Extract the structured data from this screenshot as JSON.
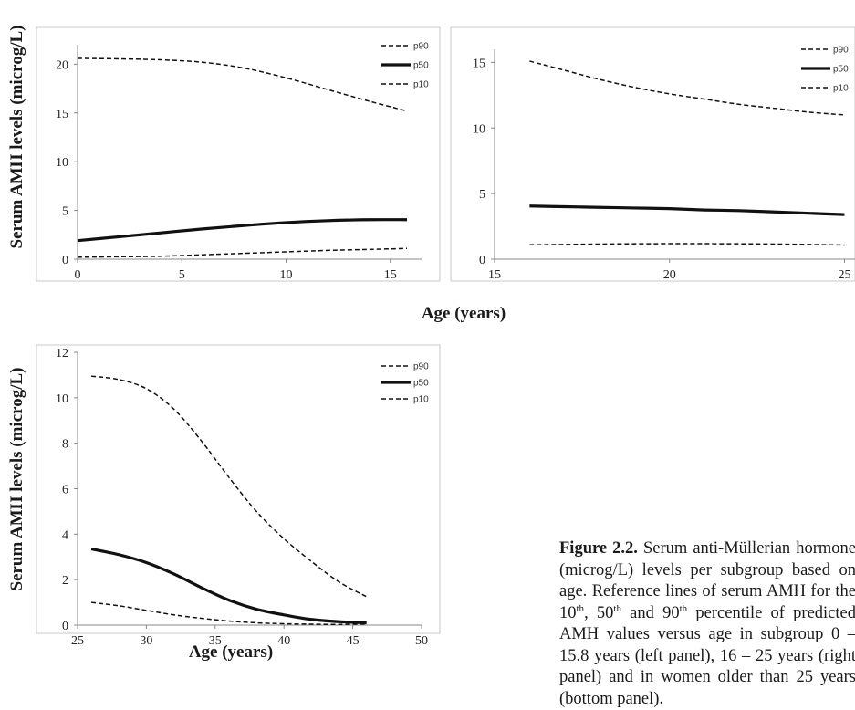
{
  "chart_data": [
    {
      "type": "line",
      "panel": "left",
      "ylabel": "Serum AMH levels (microg/L)",
      "xlim": [
        0,
        16.5
      ],
      "ylim": [
        0,
        22
      ],
      "xticks": [
        "0",
        "5",
        "10",
        "15"
      ],
      "yticks": [
        "0",
        "5",
        "10",
        "15",
        "20"
      ],
      "legend_position": "top-right",
      "series": [
        {
          "name": "p90",
          "style": "dashed",
          "x": [
            0,
            2,
            4,
            6,
            8,
            10,
            12,
            14,
            15.8
          ],
          "y": [
            20.6,
            20.55,
            20.45,
            20.2,
            19.6,
            18.6,
            17.4,
            16.2,
            15.2
          ]
        },
        {
          "name": "p50",
          "style": "solid",
          "x": [
            0,
            2,
            4,
            6,
            8,
            10,
            12,
            14,
            15.8
          ],
          "y": [
            1.9,
            2.3,
            2.7,
            3.1,
            3.45,
            3.75,
            3.95,
            4.05,
            4.05
          ]
        },
        {
          "name": "p10",
          "style": "dashed",
          "x": [
            0,
            2,
            4,
            6,
            8,
            10,
            12,
            14,
            15.8
          ],
          "y": [
            0.2,
            0.25,
            0.3,
            0.45,
            0.6,
            0.75,
            0.9,
            1.0,
            1.1
          ]
        }
      ]
    },
    {
      "type": "line",
      "panel": "right",
      "xlim": [
        15,
        25.3
      ],
      "ylim": [
        0,
        16
      ],
      "xticks": [
        "15",
        "20",
        "25"
      ],
      "yticks": [
        "0",
        "5",
        "10",
        "15"
      ],
      "legend_position": "top-right",
      "series": [
        {
          "name": "p90",
          "style": "dashed",
          "x": [
            16,
            17,
            18,
            19,
            20,
            21,
            22,
            23,
            24,
            25
          ],
          "y": [
            15.1,
            14.4,
            13.7,
            13.1,
            12.6,
            12.2,
            11.8,
            11.5,
            11.2,
            11.0
          ]
        },
        {
          "name": "p50",
          "style": "solid",
          "x": [
            16,
            17,
            18,
            19,
            20,
            21,
            22,
            23,
            24,
            25
          ],
          "y": [
            4.05,
            4.0,
            3.95,
            3.9,
            3.85,
            3.75,
            3.7,
            3.6,
            3.5,
            3.4
          ]
        },
        {
          "name": "p10",
          "style": "dashed",
          "x": [
            16,
            17,
            18,
            19,
            20,
            21,
            22,
            23,
            24,
            25
          ],
          "y": [
            1.1,
            1.12,
            1.15,
            1.17,
            1.18,
            1.18,
            1.17,
            1.15,
            1.12,
            1.08
          ]
        }
      ]
    },
    {
      "type": "line",
      "panel": "bottom",
      "xlabel": "Age (years)",
      "ylabel": "Serum AMH levels (microg/L)",
      "xlim": [
        25,
        50
      ],
      "ylim": [
        0,
        12
      ],
      "xticks": [
        "25",
        "30",
        "35",
        "40",
        "45",
        "50"
      ],
      "yticks": [
        "0",
        "2",
        "4",
        "6",
        "8",
        "10",
        "12"
      ],
      "legend_position": "top-right",
      "series": [
        {
          "name": "p90",
          "style": "dashed",
          "x": [
            26,
            28,
            30,
            32,
            34,
            36,
            38,
            40,
            42,
            44,
            46
          ],
          "y": [
            10.95,
            10.8,
            10.4,
            9.5,
            8.1,
            6.5,
            5.0,
            3.8,
            2.8,
            1.9,
            1.25
          ]
        },
        {
          "name": "p50",
          "style": "solid",
          "x": [
            26,
            28,
            30,
            32,
            34,
            36,
            38,
            40,
            42,
            44,
            46
          ],
          "y": [
            3.35,
            3.1,
            2.75,
            2.25,
            1.65,
            1.1,
            0.7,
            0.45,
            0.25,
            0.15,
            0.1
          ]
        },
        {
          "name": "p10",
          "style": "dashed",
          "x": [
            26,
            28,
            30,
            32,
            34,
            36,
            38,
            40,
            42,
            44,
            46
          ],
          "y": [
            1.0,
            0.85,
            0.65,
            0.45,
            0.3,
            0.18,
            0.1,
            0.06,
            0.04,
            0.03,
            0.05
          ]
        }
      ]
    }
  ],
  "shared_xlabel": "Age (years)",
  "caption": {
    "label": "Figure 2.2.",
    "text_before_sup1": " Serum anti-Müllerian hormone (microg/L) levels per subgroup based on age. Reference lines of serum AMH for the 10",
    "sup1": "th",
    "text_mid1": ", 50",
    "sup2": "th",
    "text_mid2": " and 90",
    "sup3": "th",
    "text_after": " percentile of predicted AMH values versus age in subgroup 0 – 15.8 years (left panel), 16 – 25 years (right panel) and in women older than 25 years (bottom panel)."
  }
}
